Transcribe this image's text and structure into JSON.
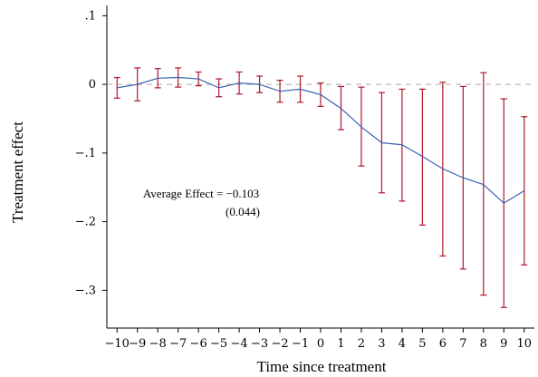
{
  "chart_data": {
    "type": "line",
    "title": "",
    "xlabel": "Time since treatment",
    "ylabel": "Treatment effect",
    "x": [
      -10,
      -9,
      -8,
      -7,
      -6,
      -5,
      -4,
      -3,
      -2,
      -1,
      0,
      1,
      2,
      3,
      4,
      5,
      6,
      7,
      8,
      9,
      10
    ],
    "x_tick_labels": [
      "−10",
      "−9",
      "−8",
      "−7",
      "−6",
      "−5",
      "−4",
      "−3",
      "−2",
      "−1",
      "0",
      "1",
      "2",
      "3",
      "4",
      "5",
      "6",
      "7",
      "8",
      "9",
      "10"
    ],
    "xlim": [
      -10.5,
      10.5
    ],
    "ylim": [
      -0.355,
      0.115
    ],
    "y_ticks": [
      0.1,
      0,
      -0.1,
      -0.2,
      -0.3
    ],
    "y_tick_labels": [
      ".1",
      "0",
      "−.1",
      "−.2",
      "−.3"
    ],
    "series": [
      {
        "values": [
          -0.005,
          0.0,
          0.009,
          0.01,
          0.008,
          -0.005,
          0.002,
          0.0,
          -0.01,
          -0.007,
          -0.015,
          -0.035,
          -0.062,
          -0.085,
          -0.088,
          -0.105,
          -0.123,
          -0.136,
          -0.146,
          -0.173,
          -0.155
        ],
        "ci_lower": [
          -0.02,
          -0.024,
          -0.005,
          -0.004,
          -0.002,
          -0.018,
          -0.014,
          -0.012,
          -0.026,
          -0.026,
          -0.032,
          -0.066,
          -0.119,
          -0.158,
          -0.17,
          -0.205,
          -0.25,
          -0.269,
          -0.307,
          -0.325,
          -0.263
        ],
        "ci_upper": [
          0.01,
          0.024,
          0.023,
          0.024,
          0.018,
          0.008,
          0.018,
          0.012,
          0.006,
          0.012,
          0.002,
          -0.003,
          -0.004,
          -0.012,
          -0.007,
          -0.007,
          0.003,
          -0.003,
          0.017,
          -0.021,
          -0.047
        ],
        "line_color": "#3a63b0",
        "errorbar_color": "#b0172c"
      }
    ],
    "reference_line": {
      "y": 0,
      "color": "#bbbbbb",
      "style": "dashed"
    },
    "grid": false,
    "annotation": {
      "line1": "Average Effect = −0.103",
      "line2": "(0.044)"
    }
  }
}
